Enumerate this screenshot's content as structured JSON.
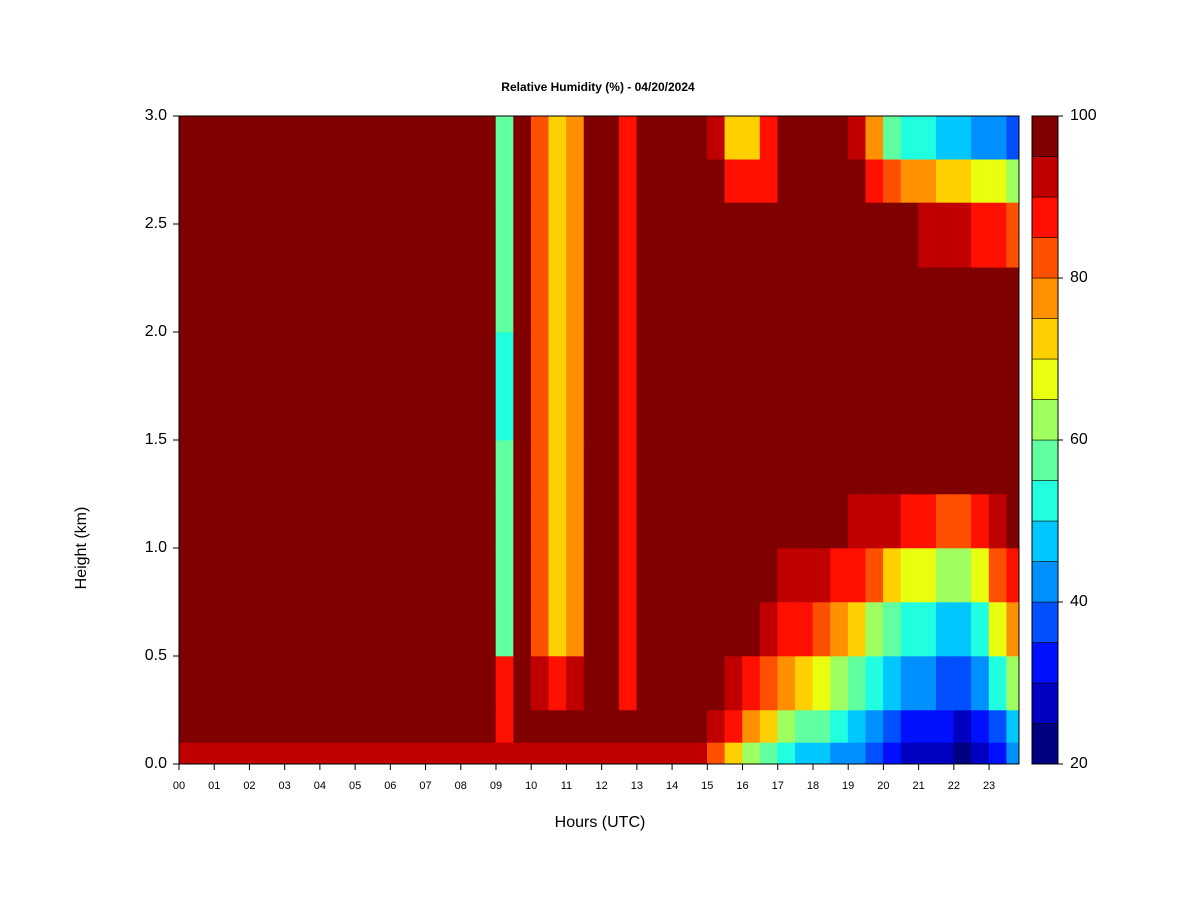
{
  "chart_data": {
    "type": "heatmap",
    "title": "Relative Humidity (%) - 04/20/2024",
    "x_label": "Hours (UTC)",
    "y_label": "Height (km)",
    "xlim": [
      0,
      23.85
    ],
    "ylim": [
      0,
      3
    ],
    "xticks": [
      {
        "value": 0,
        "label": "00"
      },
      {
        "value": 1,
        "label": "01"
      },
      {
        "value": 2,
        "label": "02"
      },
      {
        "value": 3,
        "label": "03"
      },
      {
        "value": 4,
        "label": "04"
      },
      {
        "value": 5,
        "label": "05"
      },
      {
        "value": 6,
        "label": "06"
      },
      {
        "value": 7,
        "label": "07"
      },
      {
        "value": 8,
        "label": "08"
      },
      {
        "value": 9,
        "label": "09"
      },
      {
        "value": 10,
        "label": "10"
      },
      {
        "value": 11,
        "label": "11"
      },
      {
        "value": 12,
        "label": "12"
      },
      {
        "value": 13,
        "label": "13"
      },
      {
        "value": 14,
        "label": "14"
      },
      {
        "value": 15,
        "label": "15"
      },
      {
        "value": 16,
        "label": "16"
      },
      {
        "value": 17,
        "label": "17"
      },
      {
        "value": 18,
        "label": "18"
      },
      {
        "value": 19,
        "label": "19"
      },
      {
        "value": 20,
        "label": "20"
      },
      {
        "value": 21,
        "label": "21"
      },
      {
        "value": 22,
        "label": "22"
      },
      {
        "value": 23,
        "label": "23"
      }
    ],
    "yticks": [
      {
        "value": 0,
        "label": "0.0"
      },
      0.5,
      {
        "value": 1,
        "label": "1.0"
      },
      1.5,
      {
        "value": 2,
        "label": "2.0"
      },
      2.5,
      {
        "value": 3,
        "label": "3.0"
      }
    ],
    "clim": [
      20,
      100
    ],
    "colorbar_ticks": [
      20,
      40,
      60,
      80,
      100
    ],
    "colors": [
      "#000080",
      "#0000c0",
      "#0010ff",
      "#0050ff",
      "#0090ff",
      "#00c8ff",
      "#20ffe0",
      "#60ffa0",
      "#a0ff60",
      "#e8ff10",
      "#ffd000",
      "#ff9000",
      "#ff5000",
      "#ff1000",
      "#c00000",
      "#800000"
    ],
    "x_edges": [
      0,
      0.5,
      1,
      1.5,
      2,
      2.5,
      3,
      3.5,
      4,
      4.5,
      5,
      5.5,
      6,
      6.5,
      7,
      7.5,
      8,
      8.5,
      9,
      9.5,
      10,
      10.5,
      11,
      11.5,
      12,
      12.5,
      13,
      13.5,
      14,
      14.5,
      15,
      15.5,
      16,
      16.5,
      17,
      17.5,
      18,
      18.5,
      19,
      19.5,
      20,
      20.5,
      21,
      21.5,
      22,
      22.5,
      23,
      23.5,
      24
    ],
    "y_edges": [
      0,
      0.1,
      0.25,
      0.5,
      0.75,
      1.0,
      1.25,
      1.5,
      2.0,
      2.3,
      2.6,
      2.8,
      3.0
    ],
    "z": [
      [
        90,
        90,
        90,
        90,
        90,
        90,
        90,
        90,
        90,
        90,
        90,
        90,
        90,
        90,
        90,
        90,
        90,
        90,
        92,
        92,
        92,
        92,
        92,
        92,
        92,
        92,
        92,
        92,
        92,
        92,
        80,
        70,
        60,
        55,
        50,
        45,
        45,
        42,
        40,
        35,
        30,
        28,
        28,
        25,
        22,
        25,
        32,
        40
      ],
      [
        98,
        98,
        98,
        98,
        98,
        98,
        98,
        98,
        98,
        98,
        98,
        98,
        98,
        98,
        98,
        98,
        98,
        98,
        85,
        98,
        98,
        98,
        98,
        98,
        98,
        98,
        98,
        98,
        98,
        98,
        90,
        85,
        75,
        70,
        62,
        58,
        55,
        50,
        45,
        40,
        35,
        32,
        32,
        30,
        28,
        30,
        38,
        48
      ],
      [
        98,
        98,
        98,
        98,
        98,
        98,
        98,
        98,
        98,
        98,
        98,
        98,
        98,
        98,
        98,
        98,
        98,
        98,
        85,
        98,
        90,
        88,
        90,
        98,
        98,
        85,
        98,
        98,
        98,
        98,
        98,
        93,
        88,
        82,
        78,
        72,
        68,
        62,
        58,
        50,
        45,
        42,
        40,
        38,
        36,
        40,
        50,
        60
      ],
      [
        98,
        98,
        98,
        98,
        98,
        98,
        98,
        98,
        98,
        98,
        98,
        98,
        98,
        98,
        98,
        98,
        98,
        98,
        55,
        98,
        80,
        70,
        75,
        98,
        98,
        85,
        98,
        98,
        98,
        98,
        98,
        98,
        95,
        92,
        88,
        85,
        82,
        78,
        72,
        62,
        55,
        52,
        50,
        48,
        46,
        52,
        65,
        75
      ],
      [
        98,
        98,
        98,
        98,
        98,
        98,
        98,
        98,
        98,
        98,
        98,
        98,
        98,
        98,
        98,
        98,
        98,
        98,
        55,
        98,
        80,
        70,
        75,
        98,
        98,
        85,
        98,
        98,
        98,
        98,
        98,
        98,
        98,
        96,
        93,
        92,
        90,
        88,
        85,
        80,
        72,
        68,
        65,
        62,
        60,
        68,
        80,
        88
      ],
      [
        98,
        98,
        98,
        98,
        98,
        98,
        98,
        98,
        98,
        98,
        98,
        98,
        98,
        98,
        98,
        98,
        98,
        98,
        55,
        98,
        80,
        70,
        75,
        98,
        98,
        85,
        98,
        98,
        98,
        98,
        98,
        98,
        98,
        98,
        98,
        96,
        96,
        95,
        94,
        93,
        90,
        88,
        85,
        82,
        80,
        85,
        92,
        95
      ],
      [
        98,
        98,
        98,
        98,
        98,
        98,
        98,
        98,
        98,
        98,
        98,
        98,
        98,
        98,
        98,
        98,
        98,
        98,
        55,
        98,
        80,
        70,
        75,
        98,
        98,
        85,
        98,
        98,
        98,
        98,
        98,
        98,
        98,
        98,
        98,
        98,
        98,
        98,
        98,
        98,
        98,
        98,
        98,
        97,
        96,
        98,
        98,
        98
      ],
      [
        98,
        98,
        98,
        98,
        98,
        98,
        98,
        98,
        98,
        98,
        98,
        98,
        98,
        98,
        98,
        98,
        98,
        98,
        50,
        98,
        80,
        70,
        75,
        98,
        98,
        85,
        98,
        98,
        98,
        98,
        98,
        98,
        98,
        98,
        98,
        98,
        98,
        98,
        98,
        98,
        98,
        98,
        98,
        98,
        98,
        98,
        98,
        98
      ],
      [
        98,
        98,
        98,
        98,
        98,
        98,
        98,
        98,
        98,
        98,
        98,
        98,
        98,
        98,
        98,
        98,
        98,
        98,
        55,
        98,
        80,
        70,
        75,
        98,
        98,
        85,
        98,
        98,
        98,
        98,
        98,
        98,
        98,
        98,
        98,
        98,
        98,
        98,
        98,
        98,
        98,
        98,
        98,
        98,
        98,
        98,
        98,
        98
      ],
      [
        98,
        98,
        98,
        98,
        98,
        98,
        98,
        98,
        98,
        98,
        98,
        98,
        98,
        98,
        98,
        98,
        98,
        98,
        55,
        98,
        80,
        70,
        75,
        98,
        98,
        85,
        98,
        98,
        98,
        98,
        98,
        98,
        98,
        98,
        98,
        98,
        98,
        98,
        98,
        98,
        96,
        95,
        94,
        92,
        90,
        88,
        85,
        80
      ],
      [
        98,
        98,
        98,
        98,
        98,
        98,
        98,
        98,
        98,
        98,
        98,
        98,
        98,
        98,
        98,
        98,
        98,
        98,
        55,
        98,
        80,
        70,
        75,
        98,
        98,
        85,
        98,
        98,
        98,
        98,
        98,
        85,
        85,
        88,
        98,
        98,
        98,
        98,
        98,
        88,
        80,
        78,
        75,
        72,
        70,
        68,
        65,
        62
      ],
      [
        98,
        98,
        98,
        98,
        98,
        98,
        98,
        98,
        98,
        98,
        98,
        98,
        98,
        98,
        98,
        98,
        98,
        98,
        55,
        98,
        80,
        70,
        75,
        98,
        98,
        85,
        98,
        98,
        98,
        98,
        90,
        70,
        70,
        88,
        98,
        98,
        98,
        98,
        90,
        75,
        55,
        50,
        52,
        48,
        45,
        42,
        40,
        38
      ]
    ]
  }
}
